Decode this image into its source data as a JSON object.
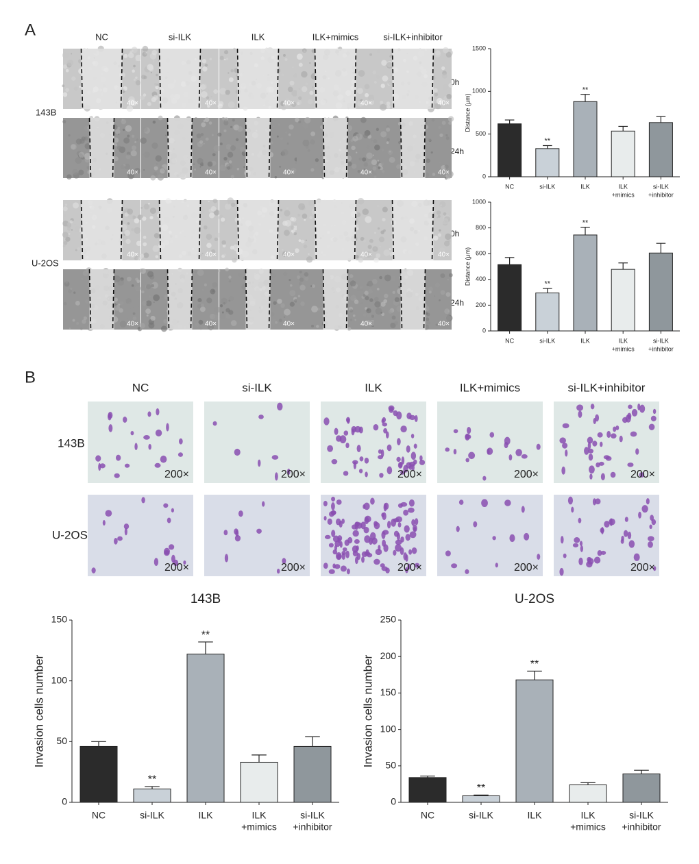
{
  "panel_labels": [
    "A",
    "B"
  ],
  "wound": {
    "columns": [
      "NC",
      "si-ILK",
      "ILK",
      "ILK+mimics",
      "si-ILK+inhibitor"
    ],
    "rows": [
      "143B",
      "U-2OS"
    ],
    "times": [
      "0h",
      "24h"
    ],
    "magnification": "40×"
  },
  "invasion": {
    "columns": [
      "NC",
      "si-ILK",
      "ILK",
      "ILK+mimics",
      "si-ILK+inhibitor"
    ],
    "rows": [
      "143B",
      "U-2OS"
    ],
    "magnification": "200×"
  },
  "chart_data": [
    {
      "type": "bar",
      "ylabel": "Distance (μm)",
      "categories": [
        "NC",
        "si-ILK",
        "ILK",
        [
          "ILK",
          "+mimics"
        ],
        [
          "si-ILK",
          "+inhibitor"
        ]
      ],
      "values": [
        620,
        330,
        880,
        535,
        635
      ],
      "errors": [
        45,
        35,
        85,
        55,
        70
      ],
      "colors": [
        "#2b2b2b",
        "#c9d1d8",
        "#a9b1b8",
        "#e8ecec",
        "#8f979c"
      ],
      "annotations": [
        {
          "index": 1,
          "text": "**"
        },
        {
          "index": 2,
          "text": "**"
        }
      ],
      "ylim": [
        0,
        1500
      ],
      "yticks": [
        0,
        500,
        1000,
        1500
      ]
    },
    {
      "type": "bar",
      "ylabel": "Distance (μm)",
      "categories": [
        "NC",
        "si-ILK",
        "ILK",
        [
          "ILK",
          "+mimics"
        ],
        [
          "si-ILK",
          "+inhibitor"
        ]
      ],
      "values": [
        515,
        295,
        745,
        478,
        605
      ],
      "errors": [
        55,
        35,
        60,
        50,
        75
      ],
      "colors": [
        "#2b2b2b",
        "#c9d1d8",
        "#a9b1b8",
        "#e8ecec",
        "#8f979c"
      ],
      "annotations": [
        {
          "index": 1,
          "text": "**"
        },
        {
          "index": 2,
          "text": "**"
        }
      ],
      "ylim": [
        0,
        1000
      ],
      "yticks": [
        0,
        200,
        400,
        600,
        800,
        1000
      ]
    },
    {
      "type": "bar",
      "title": "143B",
      "ylabel": "Invasion cells number",
      "categories": [
        "NC",
        "si-ILK",
        "ILK",
        [
          "ILK",
          "+mimics"
        ],
        [
          "si-ILK",
          "+inhibitor"
        ]
      ],
      "values": [
        46,
        11,
        122,
        33,
        46
      ],
      "errors": [
        4,
        2,
        10,
        6,
        8
      ],
      "colors": [
        "#2b2b2b",
        "#c9d1d8",
        "#a9b1b8",
        "#e8ecec",
        "#8f979c"
      ],
      "annotations": [
        {
          "index": 1,
          "text": "**"
        },
        {
          "index": 2,
          "text": "**"
        }
      ],
      "ylim": [
        0,
        150
      ],
      "yticks": [
        0,
        50,
        100,
        150
      ]
    },
    {
      "type": "bar",
      "title": "U-2OS",
      "ylabel": "Invasion cells number",
      "categories": [
        "NC",
        "si-ILK",
        "ILK",
        [
          "ILK",
          "+mimics"
        ],
        [
          "si-ILK",
          "+inhibitor"
        ]
      ],
      "values": [
        34,
        9,
        168,
        24,
        39
      ],
      "errors": [
        2,
        1,
        12,
        3,
        5
      ],
      "colors": [
        "#2b2b2b",
        "#c9d1d8",
        "#a9b1b8",
        "#e8ecec",
        "#8f979c"
      ],
      "annotations": [
        {
          "index": 1,
          "text": "**"
        },
        {
          "index": 2,
          "text": "**"
        }
      ],
      "ylim": [
        0,
        250
      ],
      "yticks": [
        0,
        50,
        100,
        150,
        200,
        250
      ]
    }
  ]
}
